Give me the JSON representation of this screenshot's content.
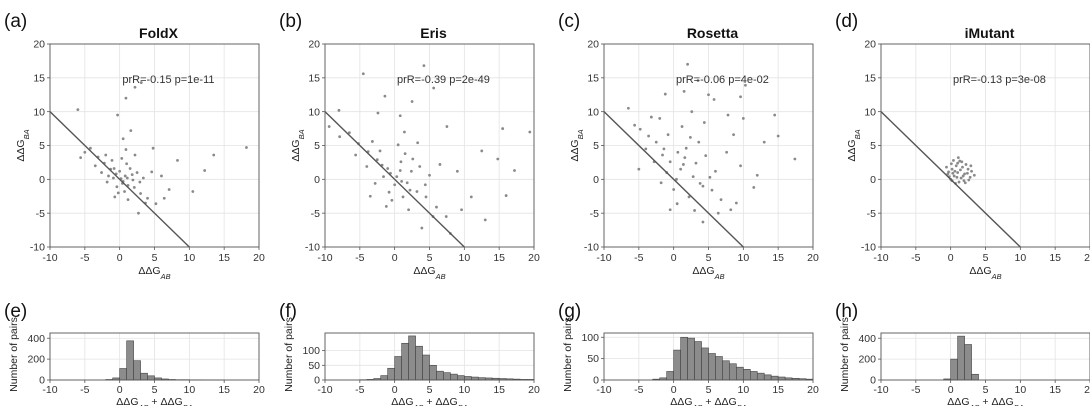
{
  "figure": {
    "stat_label": "prR=",
    "p_label": "p="
  },
  "chart_data": [
    {
      "id": "a",
      "panel_label": "(a)",
      "type": "scatter",
      "title": "FoldX",
      "xlabel": "ΔΔG_AB",
      "ylabel": "ΔΔG_BA",
      "xlim": [
        -10,
        20
      ],
      "ylim": [
        -10,
        20
      ],
      "xticks": [
        -10,
        -5,
        0,
        5,
        10,
        15,
        20
      ],
      "yticks": [
        -10,
        -5,
        0,
        5,
        10,
        15,
        20
      ],
      "grid": true,
      "annotation": "prR=-0.15 p=1e-11",
      "reference_line": {
        "slope": -1,
        "intercept": 0,
        "x_range": [
          -10,
          10
        ]
      },
      "points": [
        [
          0.2,
          0.1
        ],
        [
          -0.5,
          0.8
        ],
        [
          1.2,
          -0.9
        ],
        [
          0.8,
          0.5
        ],
        [
          -1.3,
          1.5
        ],
        [
          2.1,
          -1.2
        ],
        [
          0.5,
          -0.3
        ],
        [
          -0.9,
          0.2
        ],
        [
          1.8,
          0.7
        ],
        [
          -2.2,
          2.4
        ],
        [
          3.0,
          -2.1
        ],
        [
          0.0,
          1.2
        ],
        [
          -1.8,
          -0.4
        ],
        [
          2.5,
          1.0
        ],
        [
          -3.1,
          3.3
        ],
        [
          4.0,
          -2.8
        ],
        [
          1.0,
          2.3
        ],
        [
          -0.4,
          -1.1
        ],
        [
          3.4,
          0.2
        ],
        [
          -2.6,
          1.0
        ],
        [
          0.7,
          -1.8
        ],
        [
          1.5,
          1.6
        ],
        [
          -1.1,
          2.8
        ],
        [
          2.9,
          -0.4
        ],
        [
          -4.2,
          4.6
        ],
        [
          5.2,
          -3.6
        ],
        [
          0.3,
          3.1
        ],
        [
          -0.2,
          -2.0
        ],
        [
          4.6,
          1.1
        ],
        [
          -3.5,
          2.0
        ],
        [
          1.2,
          -3.0
        ],
        [
          6.0,
          0.5
        ],
        [
          -5.0,
          4.0
        ],
        [
          2.2,
          3.6
        ],
        [
          7.1,
          -1.5
        ],
        [
          0.9,
          4.4
        ],
        [
          -0.7,
          -2.6
        ],
        [
          3.7,
          -3.5
        ],
        [
          -2.0,
          3.6
        ],
        [
          8.3,
          2.8
        ],
        [
          10.5,
          -1.8
        ],
        [
          0.5,
          6.0
        ],
        [
          1.6,
          7.2
        ],
        [
          2.2,
          13.6
        ],
        [
          3.1,
          14.3
        ],
        [
          0.9,
          12.0
        ],
        [
          -0.3,
          9.5
        ],
        [
          12.2,
          1.3
        ],
        [
          18.2,
          4.7
        ],
        [
          13.5,
          3.6
        ],
        [
          -6.0,
          10.3
        ],
        [
          -5.6,
          3.2
        ],
        [
          4.8,
          4.6
        ],
        [
          6.4,
          -2.8
        ],
        [
          2.7,
          -5.0
        ],
        [
          -1.6,
          0.5
        ],
        [
          1.1,
          0.2
        ],
        [
          0.4,
          -0.6
        ],
        [
          -0.8,
          1.6
        ],
        [
          1.9,
          -0.1
        ]
      ],
      "histogram": {
        "panel_label": "(e)",
        "type": "bar",
        "xlabel": "ΔΔG_AB + ΔΔG_BA",
        "ylabel": "Number of pairs",
        "xlim": [
          -10,
          20
        ],
        "ylim": [
          0,
          450
        ],
        "xticks": [
          -10,
          -5,
          0,
          5,
          10,
          15,
          20
        ],
        "yticks": [
          0,
          200,
          400
        ],
        "bin_start": -2,
        "bin_width": 1,
        "counts": [
          5,
          20,
          110,
          375,
          185,
          65,
          40,
          20,
          10,
          5,
          3,
          3,
          2,
          2,
          1,
          1,
          1
        ]
      }
    },
    {
      "id": "b",
      "panel_label": "(b)",
      "type": "scatter",
      "title": "Eris",
      "xlabel": "ΔΔG_AB",
      "ylabel": "ΔΔG_BA",
      "xlim": [
        -10,
        20
      ],
      "ylim": [
        -10,
        20
      ],
      "xticks": [
        -10,
        -5,
        0,
        5,
        10,
        15,
        20
      ],
      "yticks": [
        -10,
        -5,
        0,
        5,
        10,
        15,
        20
      ],
      "grid": true,
      "annotation": "prR=-0.39 p=2e-49",
      "reference_line": {
        "slope": -1,
        "intercept": 0,
        "x_range": [
          -10,
          10
        ]
      },
      "points": [
        [
          0.3,
          0.4
        ],
        [
          -1.0,
          1.6
        ],
        [
          1.8,
          -0.5
        ],
        [
          0.8,
          1.3
        ],
        [
          -2.5,
          2.9
        ],
        [
          3.2,
          -1.8
        ],
        [
          0.0,
          -0.8
        ],
        [
          -1.6,
          0.4
        ],
        [
          2.4,
          1.2
        ],
        [
          -3.8,
          4.1
        ],
        [
          4.5,
          -2.6
        ],
        [
          0.9,
          2.6
        ],
        [
          -2.8,
          -0.6
        ],
        [
          3.6,
          1.9
        ],
        [
          -5.2,
          5.3
        ],
        [
          6.0,
          -4.1
        ],
        [
          1.5,
          3.8
        ],
        [
          -0.8,
          -1.9
        ],
        [
          5.0,
          0.6
        ],
        [
          -4.0,
          1.9
        ],
        [
          1.2,
          -2.6
        ],
        [
          2.6,
          3.0
        ],
        [
          -2.1,
          4.2
        ],
        [
          4.4,
          -0.8
        ],
        [
          -6.5,
          6.9
        ],
        [
          7.4,
          -5.5
        ],
        [
          0.5,
          5.1
        ],
        [
          -0.4,
          -3.1
        ],
        [
          6.5,
          2.2
        ],
        [
          -5.6,
          3.6
        ],
        [
          2.0,
          -4.5
        ],
        [
          9.0,
          1.2
        ],
        [
          -7.9,
          6.3
        ],
        [
          3.3,
          5.4
        ],
        [
          11.0,
          -2.6
        ],
        [
          1.4,
          7.0
        ],
        [
          -1.2,
          -4.0
        ],
        [
          5.5,
          -5.5
        ],
        [
          -3.2,
          5.6
        ],
        [
          12.5,
          4.2
        ],
        [
          16.0,
          -2.4
        ],
        [
          0.8,
          9.4
        ],
        [
          2.5,
          11.5
        ],
        [
          4.2,
          16.8
        ],
        [
          5.6,
          13.5
        ],
        [
          -1.4,
          12.3
        ],
        [
          -4.5,
          15.6
        ],
        [
          14.8,
          3.0
        ],
        [
          19.4,
          7.0
        ],
        [
          17.2,
          1.3
        ],
        [
          -8.0,
          10.2
        ],
        [
          -9.4,
          7.8
        ],
        [
          7.5,
          7.8
        ],
        [
          9.6,
          -4.5
        ],
        [
          3.9,
          -7.2
        ],
        [
          -2.4,
          9.8
        ],
        [
          1.0,
          -0.3
        ],
        [
          -0.6,
          0.9
        ],
        [
          2.2,
          -1.6
        ],
        [
          -1.8,
          2.1
        ],
        [
          8.0,
          -8.0
        ],
        [
          13.0,
          -6.0
        ],
        [
          15.5,
          7.5
        ],
        [
          -3.5,
          -2.5
        ]
      ],
      "histogram": {
        "panel_label": "(f)",
        "type": "bar",
        "xlabel": "ΔΔG_AB + ΔΔG_BA",
        "ylabel": "Number of pairs",
        "xlim": [
          -10,
          20
        ],
        "ylim": [
          0,
          160
        ],
        "xticks": [
          -10,
          -5,
          0,
          5,
          10,
          15,
          20
        ],
        "yticks": [
          0,
          50,
          100
        ],
        "bin_start": -5,
        "bin_width": 1,
        "counts": [
          1,
          2,
          5,
          15,
          40,
          80,
          125,
          150,
          115,
          85,
          50,
          30,
          25,
          20,
          15,
          12,
          10,
          8,
          7,
          6,
          5,
          4,
          3,
          2,
          2
        ]
      }
    },
    {
      "id": "c",
      "panel_label": "(c)",
      "type": "scatter",
      "title": "Rosetta",
      "xlabel": "ΔΔG_AB",
      "ylabel": "ΔΔG_BA",
      "xlim": [
        -10,
        20
      ],
      "ylim": [
        -10,
        20
      ],
      "xticks": [
        -10,
        -5,
        0,
        5,
        10,
        15,
        20
      ],
      "yticks": [
        -10,
        -5,
        0,
        5,
        10,
        15,
        20
      ],
      "grid": true,
      "annotation": "prR=-0.06 p=4e-02",
      "reference_line": {
        "slope": -1,
        "intercept": 0,
        "x_range": [
          -10,
          10
        ]
      },
      "points": [
        [
          1.0,
          1.5
        ],
        [
          -0.5,
          2.6
        ],
        [
          2.8,
          0.4
        ],
        [
          1.6,
          3.2
        ],
        [
          -1.4,
          4.5
        ],
        [
          4.2,
          -1.0
        ],
        [
          0.4,
          0.0
        ],
        [
          -1.0,
          1.0
        ],
        [
          3.2,
          2.4
        ],
        [
          -2.5,
          5.5
        ],
        [
          5.5,
          -1.6
        ],
        [
          1.8,
          4.6
        ],
        [
          -1.8,
          -0.5
        ],
        [
          4.6,
          3.5
        ],
        [
          -3.6,
          6.4
        ],
        [
          6.8,
          -3.0
        ],
        [
          2.4,
          6.2
        ],
        [
          0.0,
          -1.5
        ],
        [
          6.0,
          1.2
        ],
        [
          -2.8,
          2.6
        ],
        [
          2.2,
          -2.6
        ],
        [
          3.6,
          5.5
        ],
        [
          -0.8,
          6.6
        ],
        [
          5.2,
          0.3
        ],
        [
          -4.8,
          7.4
        ],
        [
          8.2,
          -4.5
        ],
        [
          1.2,
          7.8
        ],
        [
          0.5,
          -3.6
        ],
        [
          7.6,
          4.0
        ],
        [
          -4.0,
          4.5
        ],
        [
          3.0,
          -4.6
        ],
        [
          9.6,
          2.0
        ],
        [
          -5.6,
          8.0
        ],
        [
          4.4,
          8.4
        ],
        [
          11.5,
          -1.2
        ],
        [
          2.6,
          10.0
        ],
        [
          -0.5,
          -4.5
        ],
        [
          6.4,
          -5.0
        ],
        [
          -2.0,
          9.0
        ],
        [
          13.0,
          5.5
        ],
        [
          17.4,
          3.0
        ],
        [
          1.5,
          13.0
        ],
        [
          3.5,
          14.6
        ],
        [
          2.0,
          17.0
        ],
        [
          5.8,
          11.8
        ],
        [
          -1.2,
          12.6
        ],
        [
          10.3,
          13.9
        ],
        [
          14.5,
          9.5
        ],
        [
          15.0,
          6.4
        ],
        [
          -6.5,
          10.5
        ],
        [
          7.8,
          9.5
        ],
        [
          9.0,
          -3.5
        ],
        [
          4.2,
          -6.3
        ],
        [
          -3.2,
          9.2
        ],
        [
          12.0,
          0.6
        ],
        [
          8.6,
          6.6
        ],
        [
          1.4,
          2.2
        ],
        [
          -1.6,
          3.6
        ],
        [
          3.8,
          -0.6
        ],
        [
          0.6,
          4.0
        ],
        [
          10.0,
          9.0
        ],
        [
          5.0,
          12.5
        ],
        [
          -5.0,
          1.5
        ],
        [
          9.6,
          12.2
        ]
      ],
      "histogram": {
        "panel_label": "(g)",
        "type": "bar",
        "xlabel": "ΔΔG_AB + ΔΔG_BA",
        "ylabel": "Number of pairs",
        "xlim": [
          -10,
          20
        ],
        "ylim": [
          0,
          110
        ],
        "xticks": [
          -10,
          -5,
          0,
          5,
          10,
          15,
          20
        ],
        "yticks": [
          0,
          50,
          100
        ],
        "bin_start": -3,
        "bin_width": 1,
        "counts": [
          2,
          5,
          20,
          70,
          100,
          98,
          90,
          75,
          62,
          55,
          45,
          38,
          30,
          25,
          20,
          16,
          12,
          9,
          7,
          5,
          4,
          3,
          2
        ]
      }
    },
    {
      "id": "d",
      "panel_label": "(d)",
      "type": "scatter",
      "title": "iMutant",
      "xlabel": "ΔΔG_AB",
      "ylabel": "ΔΔG_BA",
      "xlim": [
        -10,
        20
      ],
      "ylim": [
        -10,
        20
      ],
      "xticks": [
        -10,
        -5,
        0,
        5,
        10,
        15,
        20
      ],
      "yticks": [
        -10,
        -5,
        0,
        5,
        10,
        15,
        20
      ],
      "grid": true,
      "annotation": "prR=-0.13 p=3e-08",
      "reference_line": {
        "slope": -1,
        "intercept": 0,
        "x_range": [
          -10,
          10
        ]
      },
      "points": [
        [
          0.5,
          0.5
        ],
        [
          1.0,
          1.0
        ],
        [
          1.5,
          0.2
        ],
        [
          0.2,
          1.5
        ],
        [
          2.0,
          0.8
        ],
        [
          0.8,
          2.0
        ],
        [
          1.2,
          -0.4
        ],
        [
          -0.3,
          1.1
        ],
        [
          2.5,
          1.5
        ],
        [
          1.6,
          2.6
        ],
        [
          0.0,
          0.0
        ],
        [
          2.8,
          0.3
        ],
        [
          0.4,
          2.8
        ],
        [
          1.9,
          -0.2
        ],
        [
          -0.2,
          0.4
        ],
        [
          3.0,
          1.2
        ],
        [
          1.1,
          3.2
        ],
        [
          0.7,
          -0.6
        ],
        [
          2.2,
          2.2
        ],
        [
          -0.6,
          1.8
        ],
        [
          1.4,
          1.4
        ],
        [
          0.9,
          0.3
        ],
        [
          2.6,
          -0.1
        ],
        [
          0.3,
          0.9
        ],
        [
          1.7,
          1.8
        ],
        [
          3.4,
          0.6
        ],
        [
          0.1,
          2.3
        ],
        [
          2.1,
          -0.5
        ],
        [
          1.3,
          2.7
        ],
        [
          2.9,
          2.0
        ],
        [
          0.6,
          1.2
        ],
        [
          1.8,
          0.5
        ],
        [
          -0.4,
          0.8
        ],
        [
          2.4,
          0.9
        ],
        [
          1.0,
          2.4
        ],
        [
          0.2,
          -0.2
        ]
      ],
      "histogram": {
        "panel_label": "(h)",
        "type": "bar",
        "xlabel": "ΔΔG_AB + ΔΔG_BA",
        "ylabel": "Number of pairs",
        "xlim": [
          -10,
          20
        ],
        "ylim": [
          0,
          450
        ],
        "xticks": [
          -10,
          -5,
          0,
          5,
          10,
          15,
          20
        ],
        "yticks": [
          0,
          200,
          400
        ],
        "bin_start": -1,
        "bin_width": 1,
        "counts": [
          10,
          200,
          420,
          340,
          55
        ]
      }
    }
  ]
}
